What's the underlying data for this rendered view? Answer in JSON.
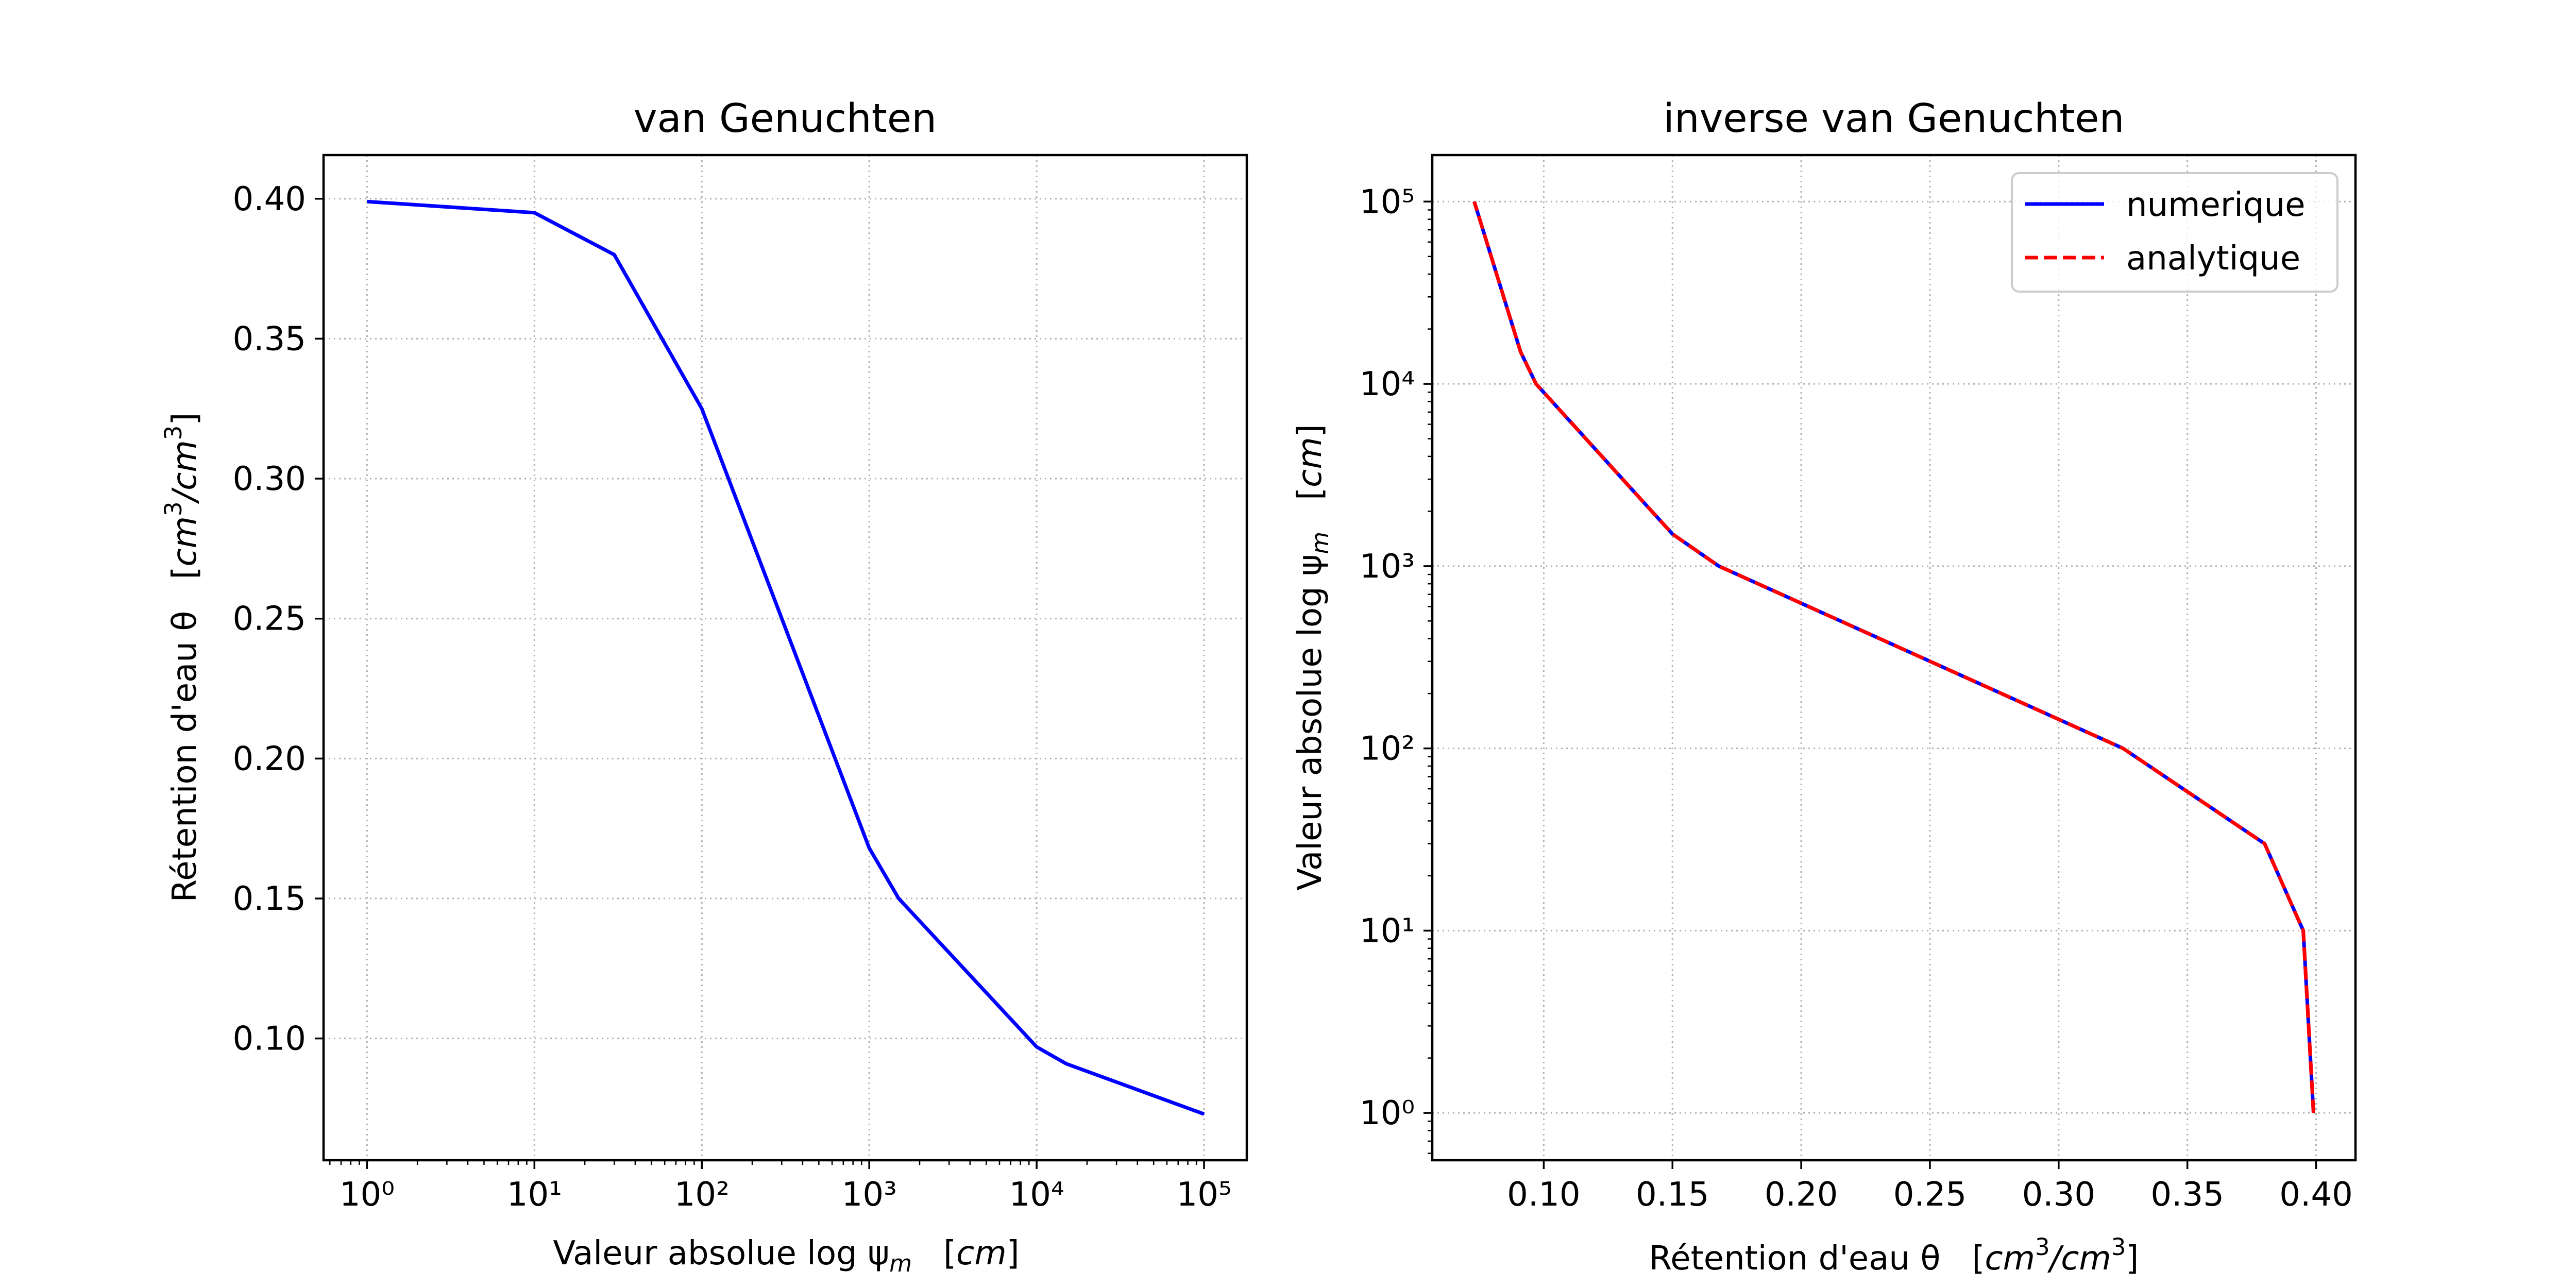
{
  "chart_data": [
    {
      "type": "line",
      "title": "van Genuchten",
      "xlabel": "Valeur absolue log ψm   [cm]",
      "ylabel": "Rétention d'eau θ   [cm3/cm3]",
      "x_scale": "log",
      "y_scale": "linear",
      "xlim": [
        0.55,
        180000
      ],
      "ylim": [
        0.0565,
        0.4156
      ],
      "x_ticks": [
        1,
        10,
        100,
        1000,
        10000,
        100000
      ],
      "y_ticks": [
        0.1,
        0.15,
        0.2,
        0.25,
        0.3,
        0.35,
        0.4
      ],
      "y_tick_labels": [
        "0.10",
        "0.15",
        "0.20",
        "0.25",
        "0.30",
        "0.35",
        "0.40"
      ],
      "grid": true,
      "series": [
        {
          "color": "#0000ff",
          "style": "solid",
          "x": [
            1,
            10,
            30,
            100,
            1000,
            1500,
            10000,
            15000,
            100000
          ],
          "y": [
            0.399,
            0.395,
            0.38,
            0.325,
            0.168,
            0.15,
            0.097,
            0.091,
            0.073
          ]
        }
      ]
    },
    {
      "type": "line",
      "title": "inverse van Genuchten",
      "xlabel": "Rétention d'eau θ   [cm3/cm3]",
      "ylabel": "Valeur absolue log ψm   [cm]",
      "x_scale": "linear",
      "y_scale": "log",
      "xlim": [
        0.0567,
        0.4153
      ],
      "ylim": [
        0.55,
        180000
      ],
      "x_ticks": [
        0.1,
        0.15,
        0.2,
        0.25,
        0.3,
        0.35,
        0.4
      ],
      "x_tick_labels": [
        "0.10",
        "0.15",
        "0.20",
        "0.25",
        "0.30",
        "0.35",
        "0.40"
      ],
      "y_ticks": [
        1,
        10,
        100,
        1000,
        10000,
        100000
      ],
      "grid": true,
      "legend": "top-right",
      "series": [
        {
          "name": "numerique",
          "color": "#0000ff",
          "style": "solid",
          "x": [
            0.399,
            0.395,
            0.38,
            0.325,
            0.168,
            0.15,
            0.097,
            0.091,
            0.073
          ],
          "y": [
            1,
            10,
            30,
            100,
            1000,
            1500,
            10000,
            15000,
            100000
          ]
        },
        {
          "name": "analytique",
          "color": "#ff0000",
          "style": "dashed",
          "x": [
            0.399,
            0.395,
            0.38,
            0.325,
            0.168,
            0.15,
            0.097,
            0.091,
            0.073
          ],
          "y": [
            1,
            10,
            30,
            100,
            1000,
            1500,
            10000,
            15000,
            100000
          ]
        }
      ]
    }
  ],
  "labels": {
    "left_xlabel_main": "Valeur absolue log ψ",
    "left_xlabel_sub": "m",
    "left_xlabel_unit": "cm",
    "left_ylabel_main": "Rétention d'eau θ",
    "left_ylabel_unit1": "cm",
    "left_ylabel_sup1": "3",
    "left_ylabel_unit2": "/cm",
    "left_ylabel_sup2": "3",
    "right_xlabel_main": "Rétention d'eau θ",
    "right_xlabel_unit1": "cm",
    "right_xlabel_sup1": "3",
    "right_xlabel_unit2": "/cm",
    "right_xlabel_sup2": "3",
    "right_ylabel_main": "Valeur absolue log ψ",
    "right_ylabel_sub": "m",
    "right_ylabel_unit": "cm"
  }
}
